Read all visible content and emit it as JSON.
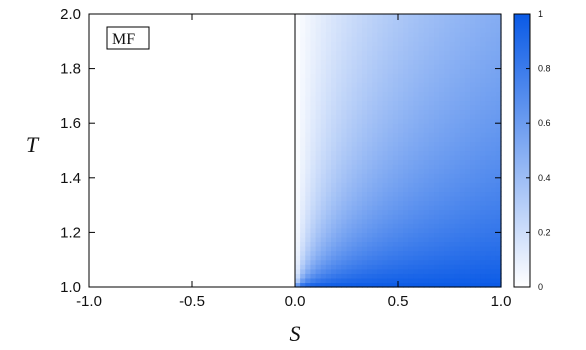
{
  "chart_data": {
    "type": "heatmap",
    "title": "",
    "xlabel": "S",
    "ylabel": "T",
    "xlim": [
      -1.0,
      1.0
    ],
    "ylim": [
      1.0,
      2.0
    ],
    "xticks": [
      -1.0,
      -0.5,
      0.0,
      0.5,
      1.0
    ],
    "xtick_labels": [
      "-1.0",
      "-0.5",
      "0.0",
      "0.5",
      "1.0"
    ],
    "yticks": [
      1.0,
      1.2,
      1.4,
      1.6,
      1.8,
      2.0
    ],
    "ytick_labels": [
      "1.0",
      "1.2",
      "1.4",
      "1.6",
      "1.8",
      "2.0"
    ],
    "annotation": "MF",
    "colorbar": {
      "range": [
        0,
        1
      ],
      "ticks": [
        0,
        0.2,
        0.4,
        0.6,
        0.8,
        1
      ],
      "tick_labels": [
        "0",
        "0.2",
        "0.4",
        "0.6",
        "0.8",
        "1"
      ],
      "low_color": "#ffffff",
      "high_color": "#0a5ae6"
    },
    "regions": [
      {
        "s_range": [
          -1.0,
          0.0
        ],
        "value": 0
      },
      {
        "s_range": [
          0.0,
          1.0
        ],
        "value_formula": "S / (S + T - 1)"
      }
    ],
    "grid": false
  }
}
